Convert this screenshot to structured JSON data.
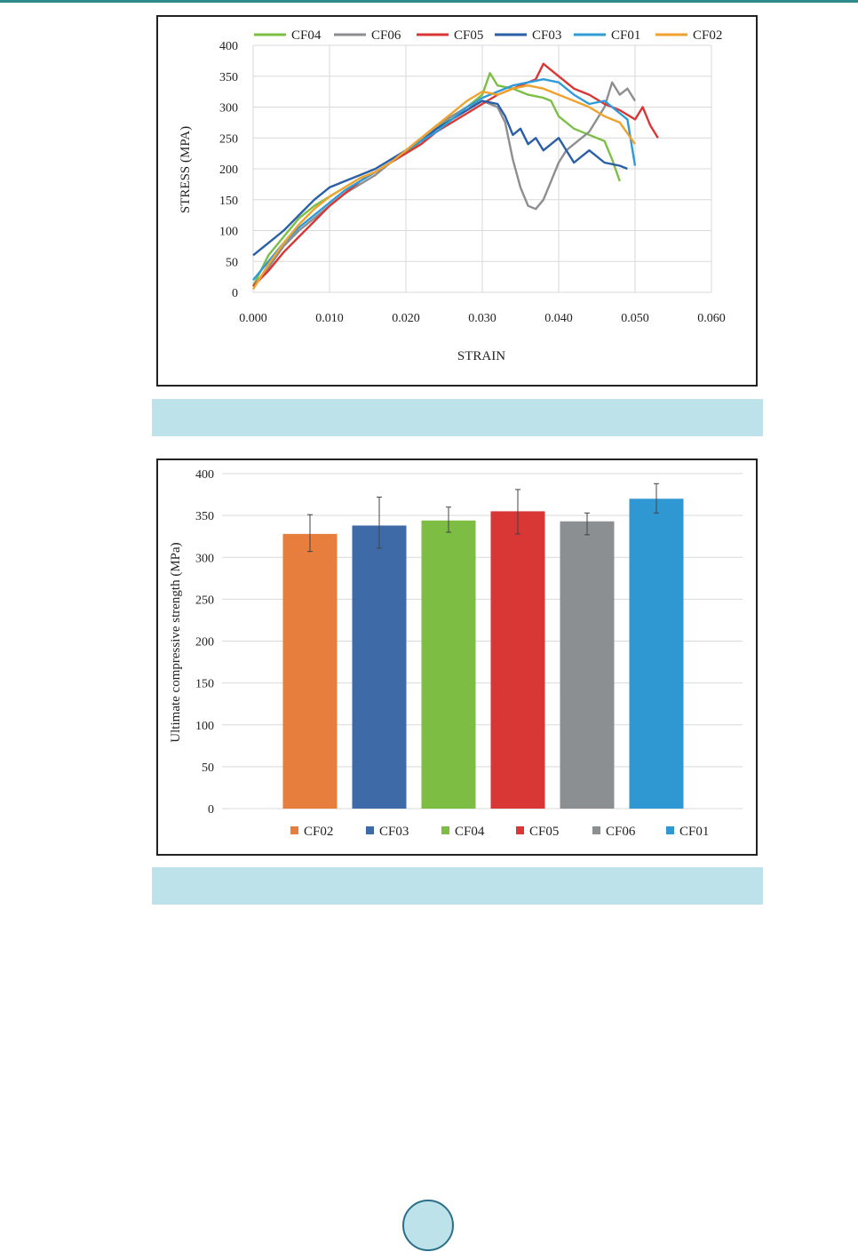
{
  "colors": {
    "page_rule": "#2e8b8b",
    "caption_band": "#bde2ea",
    "page_circle_fill": "#bde2ea",
    "page_circle_border": "#2a6f89",
    "grid": "#d9d9d9",
    "CF01": "#2f9bd7",
    "CF02": "#f0a22e",
    "CF03": "#2a5ea6",
    "CF04": "#7dbf46",
    "CF05": "#d93636",
    "CF06": "#8c8e91",
    "bar_CF02": "#e77e3d",
    "bar_CF03": "#3e6aa8",
    "bar_CF04": "#7dbd43",
    "bar_CF05": "#d93636",
    "bar_CF06": "#8c8f92",
    "bar_CF01": "#2f98d3"
  },
  "chart_data": [
    {
      "type": "line",
      "title": "",
      "xlabel": "STRAIN",
      "ylabel": "STRESS (MPA)",
      "xlim": [
        0,
        0.06
      ],
      "ylim": [
        0,
        400
      ],
      "xticks": [
        "0.000",
        "0.010",
        "0.020",
        "0.030",
        "0.040",
        "0.050",
        "0.060"
      ],
      "yticks": [
        "0",
        "50",
        "100",
        "150",
        "200",
        "250",
        "300",
        "350",
        "400"
      ],
      "grid": true,
      "legend_position": "top",
      "legend": [
        "CF04",
        "CF06",
        "CF05",
        "CF03",
        "CF01",
        "CF02"
      ],
      "series": [
        {
          "name": "CF04",
          "color_key": "CF04",
          "x": [
            0,
            0.002,
            0.004,
            0.006,
            0.008,
            0.01,
            0.012,
            0.014,
            0.016,
            0.018,
            0.02,
            0.022,
            0.024,
            0.026,
            0.028,
            0.03,
            0.031,
            0.032,
            0.034,
            0.036,
            0.038,
            0.039,
            0.04,
            0.042,
            0.044,
            0.046,
            0.047,
            0.048
          ],
          "y": [
            10,
            60,
            90,
            120,
            140,
            155,
            170,
            185,
            195,
            210,
            225,
            245,
            265,
            285,
            300,
            320,
            355,
            335,
            330,
            320,
            315,
            310,
            285,
            265,
            255,
            245,
            215,
            180
          ]
        },
        {
          "name": "CF06",
          "color_key": "CF06",
          "x": [
            0,
            0.002,
            0.004,
            0.006,
            0.008,
            0.01,
            0.012,
            0.014,
            0.016,
            0.018,
            0.02,
            0.022,
            0.024,
            0.026,
            0.028,
            0.03,
            0.032,
            0.033,
            0.034,
            0.035,
            0.036,
            0.037,
            0.038,
            0.039,
            0.04,
            0.041,
            0.042,
            0.044,
            0.046,
            0.047,
            0.048,
            0.049,
            0.05
          ],
          "y": [
            10,
            40,
            75,
            100,
            120,
            140,
            160,
            175,
            190,
            210,
            230,
            250,
            270,
            285,
            300,
            310,
            300,
            275,
            215,
            170,
            140,
            135,
            150,
            180,
            210,
            230,
            240,
            260,
            300,
            340,
            320,
            330,
            310
          ]
        },
        {
          "name": "CF05",
          "color_key": "CF05",
          "x": [
            0,
            0.002,
            0.004,
            0.006,
            0.008,
            0.01,
            0.012,
            0.014,
            0.016,
            0.018,
            0.02,
            0.022,
            0.024,
            0.026,
            0.028,
            0.03,
            0.032,
            0.034,
            0.036,
            0.037,
            0.038,
            0.04,
            0.042,
            0.044,
            0.046,
            0.048,
            0.05,
            0.051,
            0.052,
            0.053
          ],
          "y": [
            10,
            35,
            65,
            90,
            115,
            140,
            160,
            180,
            195,
            210,
            225,
            240,
            260,
            275,
            290,
            305,
            320,
            330,
            340,
            345,
            370,
            350,
            330,
            320,
            305,
            295,
            280,
            300,
            270,
            250
          ]
        },
        {
          "name": "CF03",
          "color_key": "CF03",
          "x": [
            0,
            0.002,
            0.004,
            0.006,
            0.008,
            0.01,
            0.012,
            0.014,
            0.016,
            0.018,
            0.02,
            0.022,
            0.024,
            0.026,
            0.028,
            0.03,
            0.032,
            0.033,
            0.034,
            0.035,
            0.036,
            0.037,
            0.038,
            0.04,
            0.042,
            0.044,
            0.046,
            0.048,
            0.049
          ],
          "y": [
            60,
            80,
            100,
            125,
            150,
            170,
            180,
            190,
            200,
            215,
            230,
            245,
            265,
            280,
            295,
            310,
            305,
            285,
            255,
            265,
            240,
            250,
            230,
            250,
            210,
            230,
            210,
            205,
            200
          ]
        },
        {
          "name": "CF01",
          "color_key": "CF01",
          "x": [
            0,
            0.002,
            0.004,
            0.006,
            0.008,
            0.01,
            0.012,
            0.014,
            0.016,
            0.018,
            0.02,
            0.022,
            0.024,
            0.026,
            0.028,
            0.03,
            0.032,
            0.034,
            0.036,
            0.038,
            0.04,
            0.042,
            0.044,
            0.046,
            0.048,
            0.049,
            0.05
          ],
          "y": [
            20,
            50,
            80,
            105,
            125,
            145,
            165,
            180,
            195,
            210,
            230,
            245,
            260,
            280,
            300,
            315,
            325,
            335,
            340,
            345,
            340,
            320,
            305,
            310,
            290,
            280,
            205
          ]
        },
        {
          "name": "CF02",
          "color_key": "CF02",
          "x": [
            0,
            0.002,
            0.004,
            0.006,
            0.008,
            0.01,
            0.012,
            0.014,
            0.016,
            0.018,
            0.02,
            0.022,
            0.024,
            0.026,
            0.028,
            0.03,
            0.032,
            0.034,
            0.036,
            0.038,
            0.04,
            0.042,
            0.044,
            0.046,
            0.048,
            0.05
          ],
          "y": [
            5,
            45,
            80,
            110,
            135,
            155,
            170,
            185,
            195,
            210,
            230,
            250,
            270,
            290,
            310,
            325,
            320,
            330,
            335,
            330,
            320,
            310,
            300,
            285,
            275,
            240
          ]
        }
      ]
    },
    {
      "type": "bar",
      "title": "",
      "xlabel": "",
      "ylabel": "Ultimate compressive strength (MPa)",
      "ylim": [
        0,
        400
      ],
      "yticks": [
        "0",
        "50",
        "100",
        "150",
        "200",
        "250",
        "300",
        "350",
        "400"
      ],
      "grid": true,
      "legend_position": "bottom",
      "categories": [
        "CF02",
        "CF03",
        "CF04",
        "CF05",
        "CF06",
        "CF01"
      ],
      "values": [
        328,
        338,
        344,
        355,
        343,
        370
      ],
      "error_low": [
        307,
        311,
        330,
        328,
        327,
        353
      ],
      "error_high": [
        351,
        372,
        360,
        381,
        353,
        388
      ],
      "color_keys": [
        "bar_CF02",
        "bar_CF03",
        "bar_CF04",
        "bar_CF05",
        "bar_CF06",
        "bar_CF01"
      ]
    }
  ]
}
